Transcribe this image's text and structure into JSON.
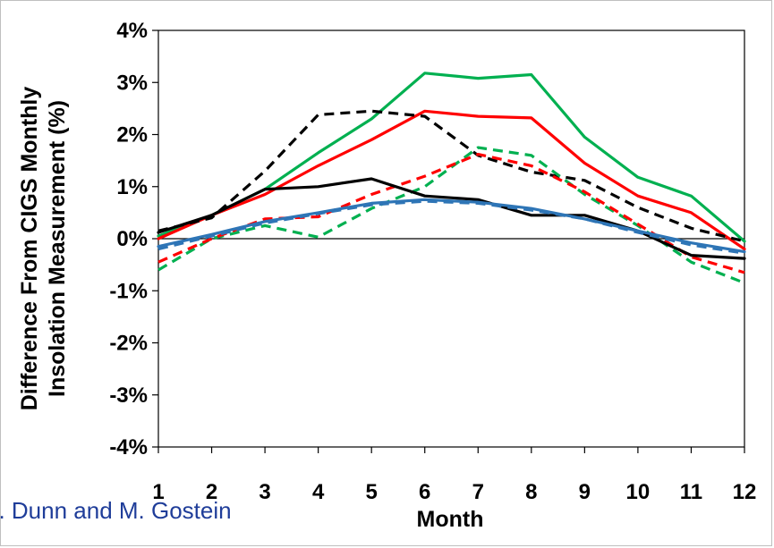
{
  "chart_data": {
    "type": "line",
    "x": [
      1,
      2,
      3,
      4,
      5,
      6,
      7,
      8,
      9,
      10,
      11,
      12
    ],
    "xlabel": "Month",
    "ylabel_lines": [
      "Difference From CIGS Monthly",
      "Insolation Measurement (%)"
    ],
    "ylim": [
      -4,
      4
    ],
    "xlim": [
      1,
      12
    ],
    "y_ticks": [
      -4,
      -3,
      -2,
      -1,
      0,
      1,
      2,
      3,
      4
    ],
    "y_tick_labels": [
      "-4%",
      "-3%",
      "-2%",
      "-1%",
      "0%",
      "1%",
      "2%",
      "3%",
      "4%"
    ],
    "x_tick_labels": [
      "1",
      "2",
      "3",
      "4",
      "5",
      "6",
      "7",
      "8",
      "9",
      "10",
      "11",
      "12"
    ],
    "legend": "none",
    "grid": false,
    "series": [
      {
        "color": "#00b050",
        "style": "solid",
        "values": [
          0.05,
          0.45,
          0.95,
          1.65,
          2.3,
          3.18,
          3.08,
          3.15,
          1.95,
          1.18,
          0.82,
          -0.05
        ]
      },
      {
        "color": "#ff0000",
        "style": "solid",
        "values": [
          0.0,
          0.45,
          0.85,
          1.4,
          1.9,
          2.45,
          2.35,
          2.32,
          1.45,
          0.82,
          0.5,
          -0.2
        ]
      },
      {
        "color": "#000000",
        "style": "dashed",
        "values": [
          0.15,
          0.4,
          1.3,
          2.38,
          2.45,
          2.35,
          1.6,
          1.28,
          1.12,
          0.6,
          0.2,
          -0.05
        ]
      },
      {
        "color": "#00b050",
        "style": "dashed",
        "values": [
          -0.6,
          0.0,
          0.25,
          0.03,
          0.58,
          1.0,
          1.75,
          1.6,
          0.85,
          0.25,
          -0.45,
          -0.85
        ]
      },
      {
        "color": "#ff0000",
        "style": "dashed",
        "values": [
          -0.45,
          0.0,
          0.38,
          0.42,
          0.85,
          1.2,
          1.62,
          1.4,
          0.9,
          0.28,
          -0.35,
          -0.65
        ]
      },
      {
        "color": "#000000",
        "style": "solid",
        "values": [
          0.12,
          0.45,
          0.95,
          1.0,
          1.15,
          0.82,
          0.75,
          0.45,
          0.45,
          0.15,
          -0.32,
          -0.38
        ]
      },
      {
        "color": "#2e75b6",
        "style": "dashed",
        "values": [
          -0.2,
          0.05,
          0.3,
          0.48,
          0.65,
          0.72,
          0.68,
          0.55,
          0.38,
          0.12,
          -0.12,
          -0.28
        ]
      },
      {
        "color": "#2e75b6",
        "style": "solid",
        "values": [
          -0.15,
          0.08,
          0.33,
          0.5,
          0.68,
          0.75,
          0.7,
          0.58,
          0.38,
          0.15,
          -0.08,
          -0.25
        ]
      }
    ]
  },
  "credit_text": "... Dunn and M. Gostein"
}
